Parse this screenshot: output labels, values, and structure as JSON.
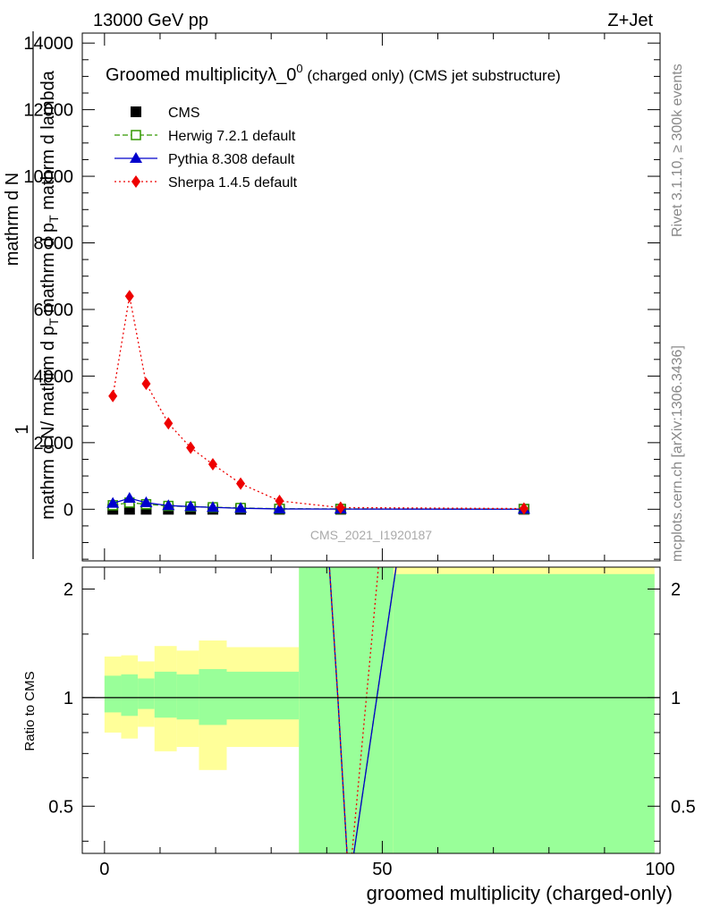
{
  "header": {
    "energy_label": "13000 GeV pp",
    "process_label": "Z+Jet"
  },
  "side": {
    "rivet_label": "Rivet 3.1.10, ≥ 300k events",
    "mcplots_label": "mcplots.cern.ch [arXiv:1306.3436]"
  },
  "chart_data": {
    "type": "line",
    "title_main": "Groomed multiplicityλ_0",
    "title_sup": "0",
    "title_suffix": " (charged only) (CMS jet substructure)",
    "watermark": "CMS_2021_I1920187",
    "xlabel": "groomed multiplicity (charged-only)",
    "ylabel_numerator": "mathrm d N",
    "ylabel_num_parts": [
      "mathrm d",
      "N"
    ],
    "ylabel_denominator_parts": [
      "mathrm d N",
      "/ mathrm d p",
      "T",
      "mathrm d p",
      "T",
      "mathrm d lambda"
    ],
    "ylabel_one": "1",
    "xlim": [
      -4,
      100
    ],
    "ylim": [
      -1550,
      14300
    ],
    "x_ticks": [
      "0",
      "50",
      "100"
    ],
    "y_ticks": [
      "0",
      "2000",
      "4000",
      "6000",
      "8000",
      "10000",
      "12000",
      "14000"
    ],
    "x_tick_values": [
      0,
      50,
      100
    ],
    "y_tick_values": [
      0,
      2000,
      4000,
      6000,
      8000,
      10000,
      12000,
      14000
    ],
    "legend_position": "top-left",
    "series": [
      {
        "name": "CMS",
        "color": "#000000",
        "marker": "square-filled",
        "x": [
          1.5,
          4.5,
          7.5,
          11.5,
          15.5,
          19.5,
          24.5,
          31.5,
          42.5,
          75.5
        ],
        "y": [
          0,
          0,
          0,
          0,
          0,
          0,
          0,
          0,
          0,
          0
        ]
      },
      {
        "name": "Herwig 7.2.1 default",
        "color": "#339900",
        "marker": "square-open",
        "line": "dashed",
        "x": [
          1.5,
          4.5,
          7.5,
          11.5,
          15.5,
          19.5,
          24.5,
          31.5,
          42.5,
          75.5
        ],
        "y": [
          120,
          200,
          150,
          100,
          80,
          60,
          40,
          15,
          10,
          5
        ]
      },
      {
        "name": "Pythia 8.308 default",
        "color": "#0000cc",
        "marker": "triangle-filled",
        "line": "solid",
        "x": [
          1.5,
          4.5,
          7.5,
          11.5,
          15.5,
          19.5,
          24.5,
          31.5,
          42.5,
          75.5
        ],
        "y": [
          180,
          330,
          200,
          110,
          80,
          55,
          30,
          10,
          5,
          2
        ]
      },
      {
        "name": "Sherpa 1.4.5 default",
        "color": "#ee0000",
        "marker": "diamond-filled",
        "line": "dotted",
        "x": [
          1.5,
          4.5,
          7.5,
          11.5,
          15.5,
          19.5,
          24.5,
          31.5,
          42.5,
          75.5
        ],
        "y": [
          3400,
          6400,
          3770,
          2580,
          1850,
          1350,
          770,
          250,
          50,
          20
        ]
      }
    ],
    "ratio": {
      "ylabel": "Ratio to CMS",
      "ylim": [
        0.37,
        2.3
      ],
      "scale": "log",
      "y_ticks": [
        "0.5",
        "1",
        "2"
      ],
      "y_tick_values": [
        0.5,
        1,
        2
      ],
      "bins": [
        {
          "lo": 0,
          "hi": 3,
          "yellow": [
            0.8,
            1.3
          ],
          "green": [
            0.91,
            1.15
          ]
        },
        {
          "lo": 3,
          "hi": 6,
          "yellow": [
            0.77,
            1.31
          ],
          "green": [
            0.89,
            1.16
          ]
        },
        {
          "lo": 6,
          "hi": 9,
          "yellow": [
            0.83,
            1.26
          ],
          "green": [
            0.93,
            1.13
          ]
        },
        {
          "lo": 9,
          "hi": 13,
          "yellow": [
            0.71,
            1.39
          ],
          "green": [
            0.88,
            1.18
          ]
        },
        {
          "lo": 13,
          "hi": 17,
          "yellow": [
            0.73,
            1.35
          ],
          "green": [
            0.87,
            1.16
          ]
        },
        {
          "lo": 17,
          "hi": 22,
          "yellow": [
            0.63,
            1.44
          ],
          "green": [
            0.84,
            1.2
          ]
        },
        {
          "lo": 22,
          "hi": 35,
          "yellow": [
            0.73,
            1.38
          ],
          "green": [
            0.87,
            1.18
          ]
        },
        {
          "lo": 35,
          "hi": 52,
          "yellow": [
            0.2,
            3.0
          ],
          "green": [
            0.2,
            3.0
          ]
        },
        {
          "lo": 52,
          "hi": 99,
          "yellow": [
            0.2,
            3.0
          ],
          "green": [
            0.2,
            2.2
          ]
        }
      ],
      "lines": [
        {
          "name": "Herwig 7.2.1 default",
          "color": "#339900",
          "style": "dashed",
          "x": [
            40.0,
            42.0,
            44.0,
            53.6
          ],
          "y": [
            3.0,
            1.0,
            0.3,
            3.0
          ]
        },
        {
          "name": "Pythia 8.308 default",
          "color": "#0000cc",
          "style": "solid",
          "x": [
            40.0,
            42.0,
            44.0,
            53.6
          ],
          "y": [
            3.0,
            1.0,
            0.3,
            3.0
          ]
        },
        {
          "name": "Sherpa 1.4.5 default",
          "color": "#ee0000",
          "style": "dotted",
          "x": [
            40.0,
            42.0,
            44.0,
            50.0
          ],
          "y": [
            3.0,
            1.0,
            0.3,
            3.0
          ]
        }
      ]
    }
  }
}
